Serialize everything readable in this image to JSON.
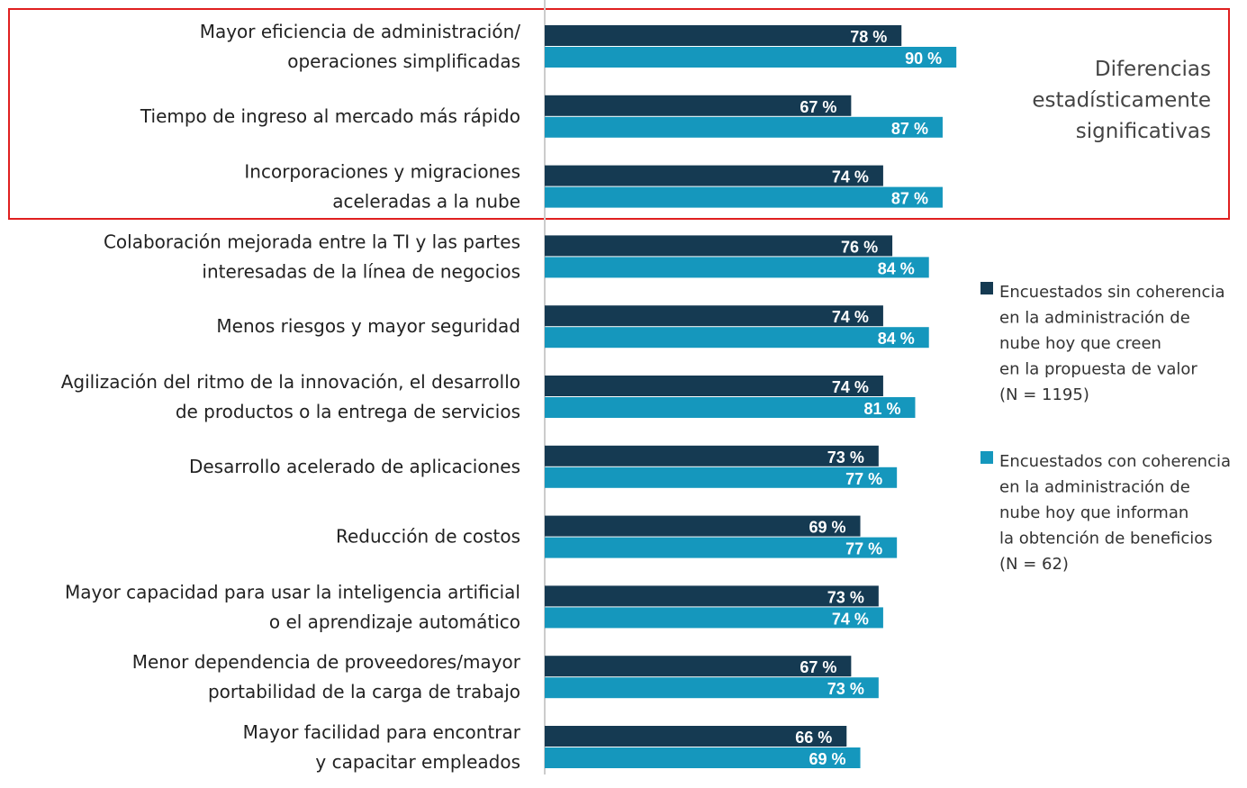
{
  "chart_data": {
    "type": "bar",
    "orientation": "horizontal",
    "annotation": "Diferencias\nestadísticamente\nsignificativas",
    "categories": [
      "Mayor eficiencia de administración/\noperaciones simplificadas",
      "Tiempo de ingreso al mercado más rápido",
      "Incorporaciones y migraciones\naceleradas a la nube",
      "Colaboración mejorada entre la TI y las partes\ninteresadas de la línea de negocios",
      "Menos riesgos y mayor seguridad",
      "Agilización del ritmo de la innovación, el desarrollo\nde productos o la entrega de servicios",
      "Desarrollo acelerado de aplicaciones",
      "Reducción de costos",
      "Mayor capacidad para usar la inteligencia artificial\no el aprendizaje automático",
      "Menor dependencia de proveedores/mayor\nportabilidad de la carga de trabajo",
      "Mayor facilidad para encontrar\ny capacitar empleados"
    ],
    "series": [
      {
        "name": "Encuestados sin coherencia\nen la administración de\nnube hoy que creen\nen la propuesta de valor\n(N = 1195)",
        "color": "#153a52",
        "values": [
          78,
          67,
          74,
          76,
          74,
          74,
          73,
          69,
          73,
          67,
          66
        ],
        "value_labels": [
          "78 %",
          "67 %",
          "74 %",
          "76 %",
          "74 %",
          "74 %",
          "73 %",
          "69 %",
          "73 %",
          "67 %",
          "66 %"
        ]
      },
      {
        "name": "Encuestados con coherencia\nen la administración de\nnube hoy que informan\nla obtención de beneficios\n(N = 62)",
        "color": "#1597bd",
        "values": [
          90,
          87,
          87,
          84,
          84,
          81,
          77,
          77,
          74,
          73,
          69
        ],
        "value_labels": [
          "90 %",
          "87 %",
          "87 %",
          "84 %",
          "84 %",
          "81 %",
          "77 %",
          "77 %",
          "74 %",
          "73 %",
          "69 %"
        ]
      }
    ],
    "xlim": [
      0,
      100
    ]
  }
}
